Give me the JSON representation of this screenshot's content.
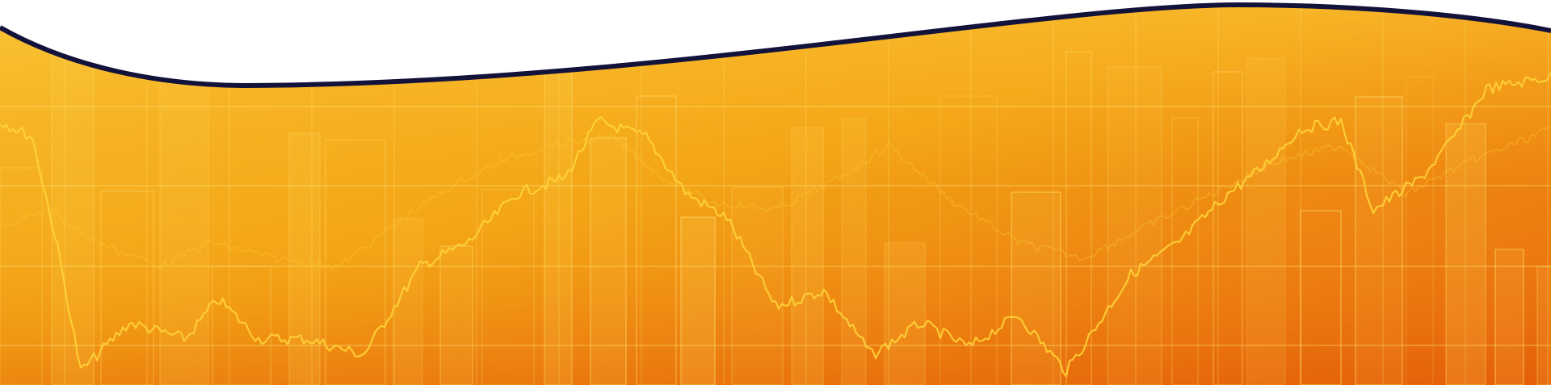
{
  "banner": {
    "colors": {
      "orange_light": "#f3b429",
      "orange_mid": "#f29a12",
      "orange_dark": "#e8620a",
      "line_yellow": "#ffd63a",
      "grid_yellow": "#ffe070",
      "curve_navy": "#12123a",
      "sky_white": "#ffffff"
    },
    "icons": [
      "stock-line-chart-graphic",
      "bar-chart-graphic",
      "grid-graphic",
      "wave-curve-graphic"
    ]
  }
}
